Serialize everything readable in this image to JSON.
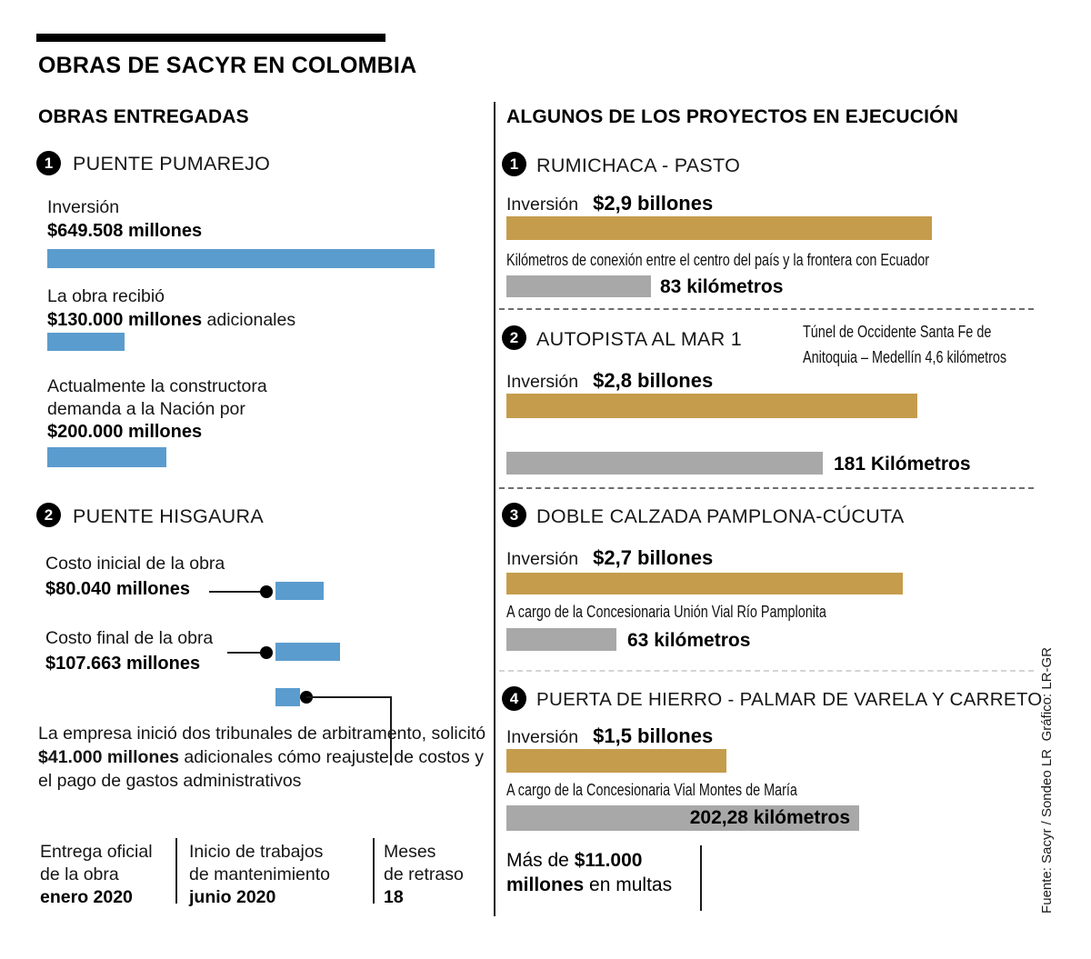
{
  "title": "OBRAS DE SACYR EN COLOMBIA",
  "source": "Fuente: Sacyr / Sondeo LR",
  "credit": "Gráfico: LR-GR",
  "colors": {
    "blue": "#5B9CCE",
    "gold": "#C59C4C",
    "gray": "#A8A8A8"
  },
  "chart_data": [
    {
      "type": "bar",
      "title": "Puente Pumarejo ($ millones)",
      "categories": [
        "Inversión",
        "Adicionales recibidos por la obra",
        "Demanda de la constructora a la Nación"
      ],
      "values": [
        649508,
        130000,
        200000
      ],
      "xlabel": "",
      "ylabel": "$ millones",
      "color": "#5B9CCE"
    },
    {
      "type": "bar",
      "title": "Puente Hisgaura ($ millones)",
      "categories": [
        "Costo inicial de la obra",
        "Costo final de la obra",
        "Solicitado en tribunales de arbitramento"
      ],
      "values": [
        80040,
        107663,
        41000
      ],
      "xlabel": "",
      "ylabel": "$ millones",
      "color": "#5B9CCE"
    },
    {
      "type": "bar",
      "title": "Proyectos en ejecución — Inversión ($ billones)",
      "categories": [
        "Rumichaca - Pasto",
        "Autopista al Mar 1",
        "Doble Calzada Pamplona-Cúcuta",
        "Puerta de Hierro - Palmar de Varela y Carreto"
      ],
      "values": [
        2.9,
        2.8,
        2.7,
        1.5
      ],
      "xlabel": "",
      "ylabel": "$ billones",
      "color": "#C59C4C"
    },
    {
      "type": "bar",
      "title": "Proyectos en ejecución — Kilómetros",
      "categories": [
        "Rumichaca - Pasto",
        "Autopista al Mar 1",
        "Doble Calzada Pamplona-Cúcuta",
        "Puerta de Hierro - Palmar de Varela y Carreto"
      ],
      "values": [
        83,
        181,
        63,
        202.28
      ],
      "xlabel": "",
      "ylabel": "kilómetros",
      "color": "#A8A8A8"
    }
  ],
  "left": {
    "header": "OBRAS ENTREGADAS",
    "p1": {
      "number": "1",
      "name": "PUENTE PUMAREJO",
      "s1_label": "Inversión",
      "s1_value": "$649.508 millones",
      "s2_label": "La obra recibió",
      "s2_value": "$130.000 millones",
      "s2_suffix": " adicionales",
      "s3_label1": "Actualmente la constructora",
      "s3_label2": "demanda a la Nación por",
      "s3_value": "$200.000 millones"
    },
    "p2": {
      "number": "2",
      "name": "PUENTE HISGAURA",
      "s1_label": "Costo inicial de la obra",
      "s1_value": "$80.040 millones",
      "s2_label": "Costo final de la obra",
      "s2_value": "$107.663 millones",
      "note_pre": "La empresa inició dos tribunales de arbitramento, solicitó ",
      "note_bold": "$41.000 millones",
      "note_post": " adicionales cómo reajuste de costos y el pago de gastos administrativos"
    },
    "footer": [
      {
        "line1": "Entrega oficial",
        "line2": "de la obra",
        "value": "enero 2020"
      },
      {
        "line1": "Inicio de trabajos",
        "line2": "de mantenimiento",
        "value": "junio 2020"
      },
      {
        "line1": "Meses",
        "line2": "de retraso",
        "value": "18"
      }
    ]
  },
  "right": {
    "header": "ALGUNOS DE LOS PROYECTOS EN EJECUCIÓN",
    "p1": {
      "number": "1",
      "name": "RUMICHACA - PASTO",
      "inv_label": "Inversión",
      "inv_value": "$2,9 billones",
      "note": "Kilómetros de conexión entre el centro del país y la frontera con Ecuador",
      "km": "83 kilómetros"
    },
    "p2": {
      "number": "2",
      "name": "AUTOPISTA AL MAR 1",
      "side1": "Túnel de Occidente Santa Fe de",
      "side2": "Anitoquia – Medellín 4,6 kilómetros",
      "inv_label": "Inversión",
      "inv_value": "$2,8 billones",
      "km": "181 Kilómetros"
    },
    "p3": {
      "number": "3",
      "name": "DOBLE CALZADA PAMPLONA-CÚCUTA",
      "inv_label": "Inversión",
      "inv_value": "$2,7 billones",
      "note": "A cargo de la Concesionaria Unión Vial Río Pamplonita",
      "km": "63 kilómetros"
    },
    "p4": {
      "number": "4",
      "name": "PUERTA DE HIERRO - PALMAR DE VARELA Y CARRETO",
      "inv_label": "Inversión",
      "inv_value": "$1,5 billones",
      "note": "A cargo de la Concesionaria Vial Montes de María",
      "km": "202,28 kilómetros"
    },
    "footer": {
      "pre": "Más de ",
      "bold1": "$11.000",
      "bold2": "millones",
      "post": " en multas"
    }
  }
}
